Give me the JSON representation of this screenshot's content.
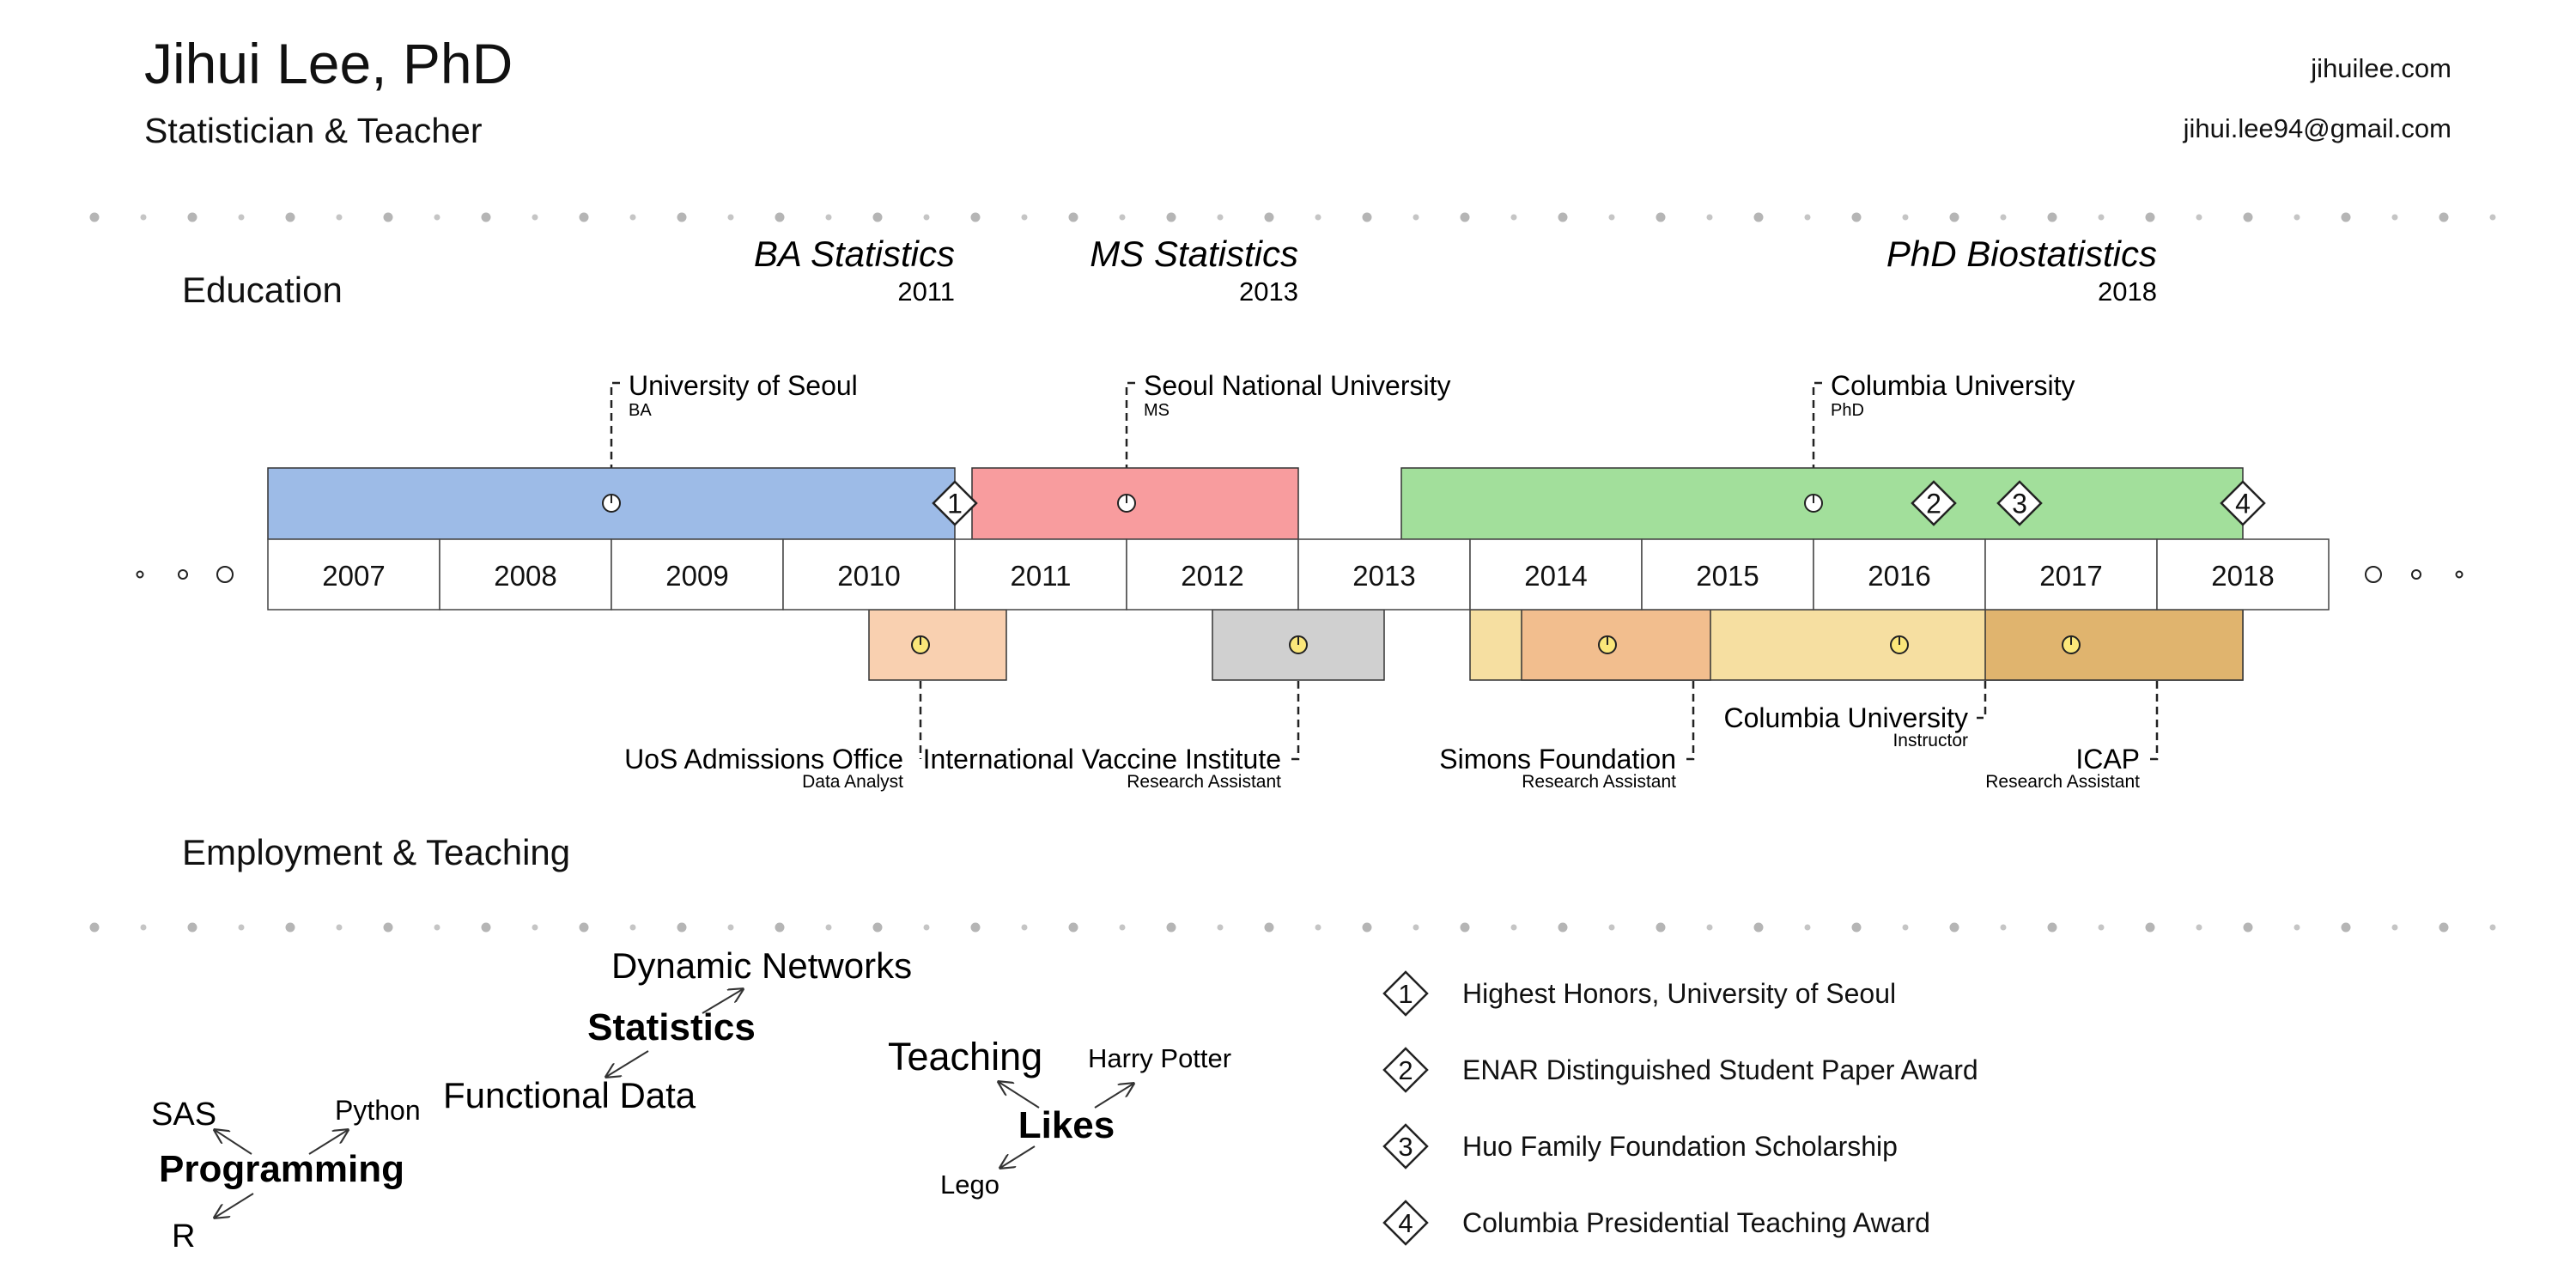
{
  "header": {
    "name": "Jihui Lee, PhD",
    "title": "Statistician & Teacher",
    "website": "jihuilee.com",
    "email": "jihui.lee94@gmail.com"
  },
  "sections": {
    "education": "Education",
    "employment": "Employment & Teaching"
  },
  "timeline": {
    "years": [
      "2007",
      "2008",
      "2009",
      "2010",
      "2011",
      "2012",
      "2013",
      "2014",
      "2015",
      "2016",
      "2017",
      "2018"
    ]
  },
  "degrees": [
    {
      "title": "BA Statistics",
      "year": "2011"
    },
    {
      "title": "MS Statistics",
      "year": "2013"
    },
    {
      "title": "PhD Biostatistics",
      "year": "2018"
    }
  ],
  "education": [
    {
      "institution": "University of Seoul",
      "degree": "BA",
      "start": 2007,
      "end": 2011,
      "marker": 2009,
      "color": "#9dbbe7"
    },
    {
      "institution": "Seoul National University",
      "degree": "MS",
      "start": 2011.1,
      "end": 2013,
      "marker": 2012,
      "color": "#f89c9e"
    },
    {
      "institution": "Columbia University",
      "degree": "PhD",
      "start": 2013.6,
      "end": 2018.5,
      "marker": 2016,
      "color": "#a2df9b"
    }
  ],
  "employment": [
    {
      "institution": "UoS Admissions Office",
      "role": "Data Analyst",
      "start": 2010.5,
      "end": 2011.3,
      "marker": 2010.8,
      "color": "#f9d0b0"
    },
    {
      "institution": "International Vaccine Institute",
      "role": "Research Assistant",
      "start": 2012.5,
      "end": 2013.5,
      "marker": 2013,
      "color": "#d0d0d0"
    },
    {
      "institution": "Simons Foundation",
      "role": "Research Assistant",
      "start": 2014.3,
      "end": 2015.4,
      "marker": 2014.8,
      "color": "#f2be8e"
    },
    {
      "institution": "Columbia University",
      "role": "Instructor",
      "start": 2014,
      "end": 2018.5,
      "marker": 2016.5,
      "color": "#f6dfa1"
    },
    {
      "institution": "ICAP",
      "role": "Research Assistant",
      "start": 2017,
      "end": 2018.5,
      "marker": 2017.5,
      "color": "#e0b46e"
    }
  ],
  "award_markers": [
    {
      "number": "1",
      "year": 2011
    },
    {
      "number": "2",
      "year": 2016.7
    },
    {
      "number": "3",
      "year": 2017.2
    },
    {
      "number": "4",
      "year": 2018.5
    }
  ],
  "awards": [
    {
      "number": "1",
      "name": "Highest Honors, University of Seoul"
    },
    {
      "number": "2",
      "name": "ENAR Distinguished Student Paper Award"
    },
    {
      "number": "3",
      "name": "Huo Family Foundation Scholarship"
    },
    {
      "number": "4",
      "name": "Columbia Presidential Teaching Award"
    }
  ],
  "skills": {
    "statistics": {
      "center": "Statistics",
      "branches": [
        "Dynamic Networks",
        "Functional Data"
      ]
    },
    "programming": {
      "center": "Programming",
      "branches": [
        "SAS",
        "Python",
        "R"
      ]
    },
    "likes": {
      "center": "Likes",
      "branches": [
        "Teaching",
        "Harry Potter",
        "Lego"
      ]
    }
  }
}
